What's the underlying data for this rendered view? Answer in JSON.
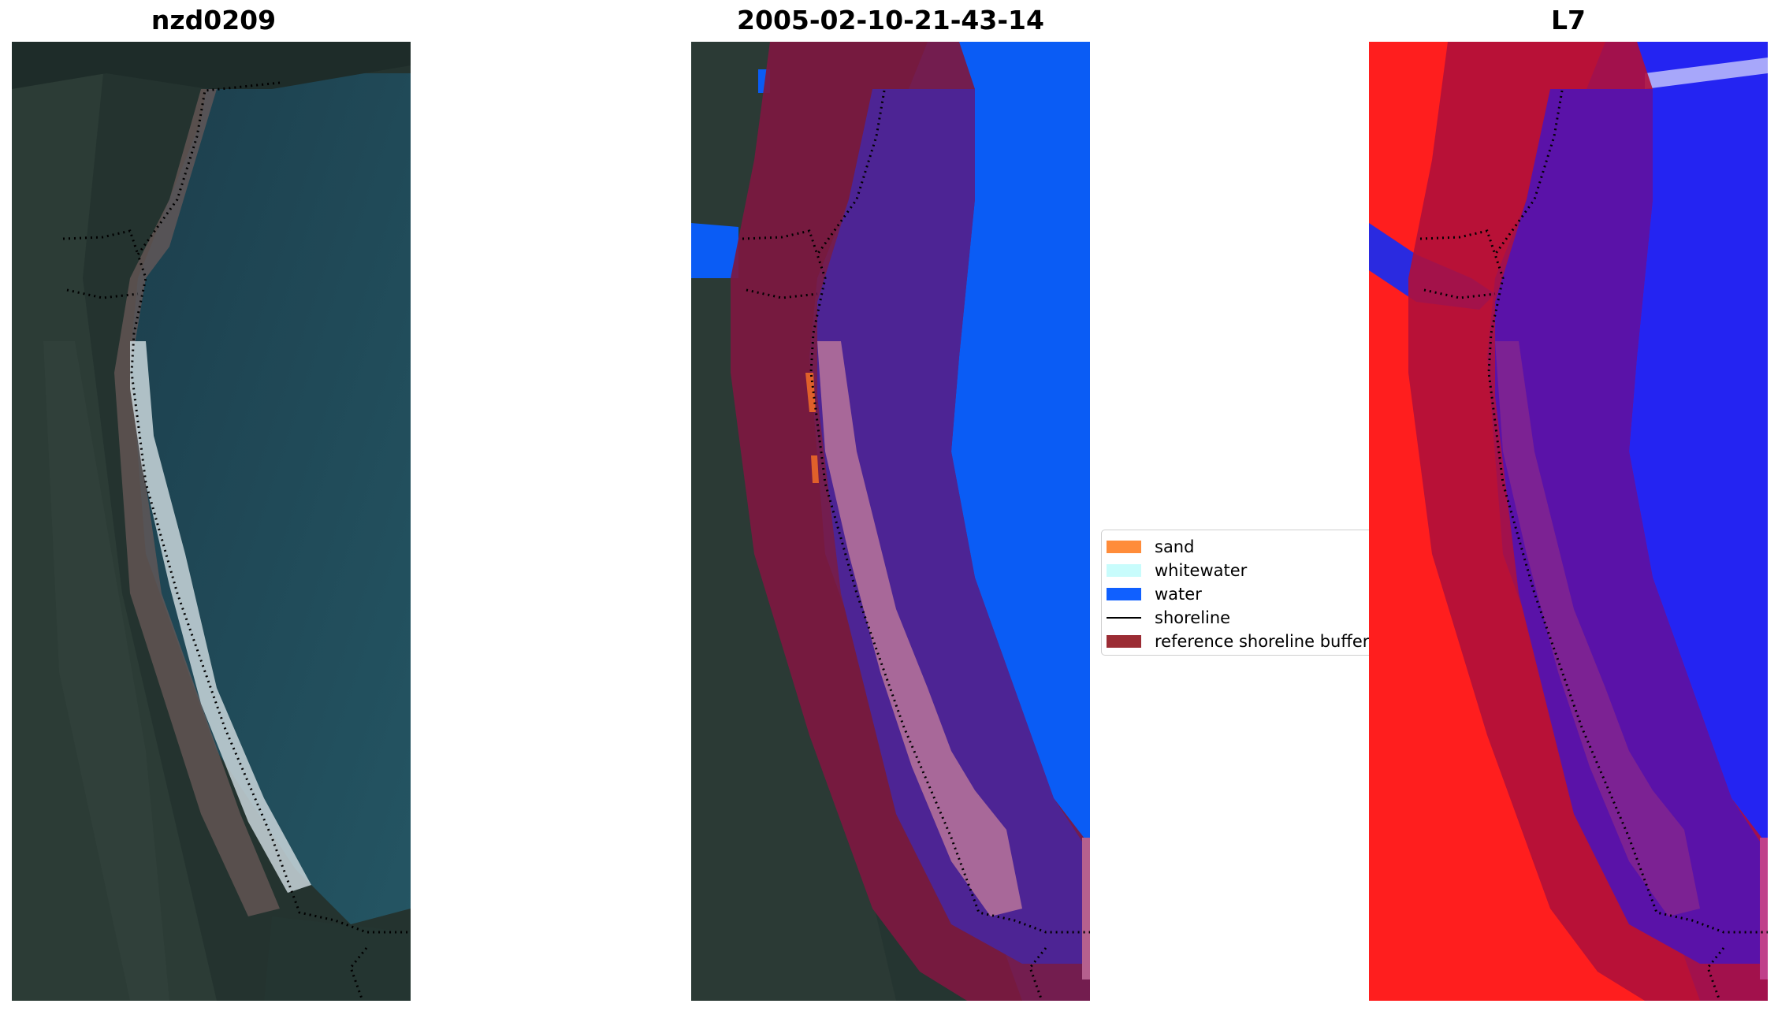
{
  "panels": [
    {
      "title": "nzd0209"
    },
    {
      "title": "2005-02-10-21-43-14"
    },
    {
      "title": "L7"
    }
  ],
  "legend": {
    "items": [
      {
        "label": "sand",
        "color": "#ff8c3a",
        "kind": "patch"
      },
      {
        "label": "whitewater",
        "color": "#c8fcfc",
        "kind": "patch"
      },
      {
        "label": "water",
        "color": "#1060ff",
        "kind": "patch"
      },
      {
        "label": "shoreline",
        "color": "#000000",
        "kind": "line"
      },
      {
        "label": "reference shoreline buffer",
        "color": "#9b2c34",
        "kind": "patch"
      }
    ]
  },
  "colors": {
    "buffer": "#8a1a3e",
    "land": "#253a35",
    "sea": "#1f4a5a",
    "index_land": "#ff2020",
    "index_water": "#2020ff"
  }
}
